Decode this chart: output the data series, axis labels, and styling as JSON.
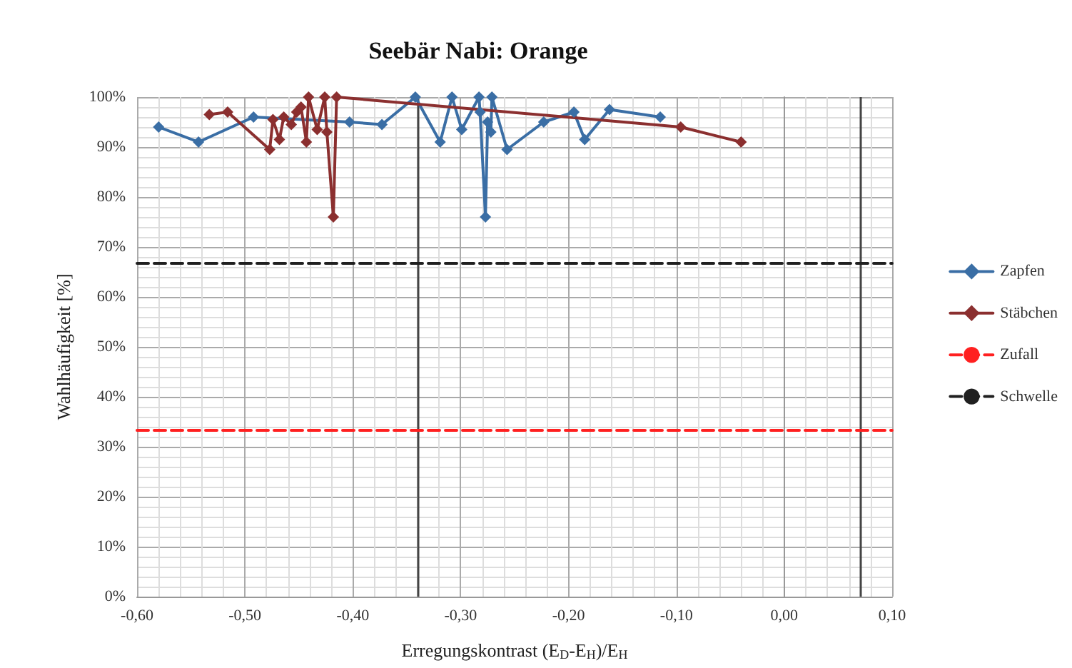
{
  "chart_data": {
    "type": "line",
    "title": "Seebär Nabi: Orange",
    "xlabel": "Erregungskontrast (E$_{D}$-E$_{H}$)/E$_{H}$",
    "ylabel": "Wahlhäufigkeit [%]",
    "xlim": [
      -0.6,
      0.1
    ],
    "xticks": [
      {
        "value": -0.6,
        "label": "-0,60"
      },
      {
        "value": -0.5,
        "label": "-0,50"
      },
      {
        "value": -0.4,
        "label": "-0,40"
      },
      {
        "value": -0.3,
        "label": "-0,30"
      },
      {
        "value": -0.2,
        "label": "-0,20"
      },
      {
        "value": -0.1,
        "label": "-0,10"
      },
      {
        "value": 0,
        "label": "0,00"
      },
      {
        "value": 0.1,
        "label": "0,10"
      }
    ],
    "ylim": [
      0,
      100
    ],
    "yticks": [
      {
        "value": 0,
        "label": "0%"
      },
      {
        "value": 10,
        "label": "10%"
      },
      {
        "value": 20,
        "label": "20%"
      },
      {
        "value": 30,
        "label": "30%"
      },
      {
        "value": 40,
        "label": "40%"
      },
      {
        "value": 50,
        "label": "50%"
      },
      {
        "value": 60,
        "label": "60%"
      },
      {
        "value": 70,
        "label": "70%"
      },
      {
        "value": 80,
        "label": "80%"
      },
      {
        "value": 90,
        "label": "90%"
      },
      {
        "value": 100,
        "label": "100%"
      }
    ],
    "grid": true,
    "legend": "right",
    "marker": "diamond",
    "line_style": "solid",
    "series": [
      {
        "name": "Zapfen",
        "color": "#3a6ea5",
        "x": [
          -0.58,
          -0.543,
          -0.492,
          -0.403,
          -0.373,
          -0.342,
          -0.319,
          -0.308,
          -0.299,
          -0.283,
          -0.282,
          -0.277,
          -0.275,
          -0.272,
          -0.271,
          -0.257,
          -0.223,
          -0.195,
          -0.185,
          -0.162,
          -0.115
        ],
        "values": [
          94,
          91,
          96,
          95,
          94.5,
          100,
          91,
          100,
          93.5,
          100,
          97,
          76,
          95,
          93,
          100,
          89.5,
          95,
          97,
          91.5,
          97.5,
          96
        ]
      },
      {
        "name": "Stäbchen",
        "color": "#8b2f2f",
        "x": [
          -0.533,
          -0.516,
          -0.477,
          -0.474,
          -0.468,
          -0.464,
          -0.457,
          -0.452,
          -0.448,
          -0.443,
          -0.441,
          -0.433,
          -0.426,
          -0.424,
          -0.418,
          -0.415,
          -0.096,
          -0.04
        ],
        "values": [
          96.5,
          97,
          89.5,
          95.5,
          91.5,
          96,
          94.5,
          97,
          98,
          91,
          100,
          93.5,
          100,
          93,
          76,
          100,
          94,
          91
        ]
      },
      {
        "name": "Zufall",
        "color": "#ff2020",
        "x": [
          -0.6,
          0.1
        ],
        "values": [
          33.3,
          33.3
        ],
        "marker": "none",
        "line_style": "dashed"
      },
      {
        "name": "Schwelle",
        "color": "#202020",
        "x": [
          -0.6,
          0.1
        ],
        "values": [
          66.7,
          66.7
        ],
        "marker": "none",
        "line_style": "dashed"
      }
    ],
    "ref_lines": [
      {
        "axis": "x",
        "value": -0.34,
        "color": "#444444"
      },
      {
        "axis": "x",
        "value": 0.07,
        "color": "#444444"
      }
    ]
  }
}
